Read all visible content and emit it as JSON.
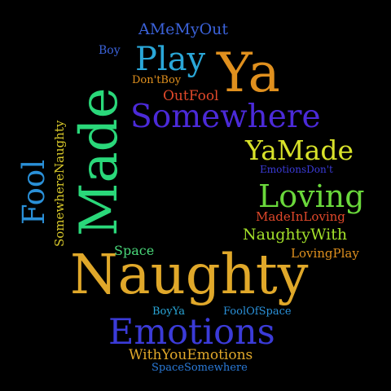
{
  "words": [
    {
      "id": "amemyout",
      "text": "AMeMyOut",
      "color": "#3b62d9"
    },
    {
      "id": "boy",
      "text": "Boy",
      "color": "#3b62d9"
    },
    {
      "id": "play",
      "text": "Play",
      "color": "#2aa7d8"
    },
    {
      "id": "ya",
      "text": "Ya",
      "color": "#e0901e"
    },
    {
      "id": "dontboy",
      "text": "Don'tBoy",
      "color": "#e0901e"
    },
    {
      "id": "outfool",
      "text": "OutFool",
      "color": "#e0482a"
    },
    {
      "id": "somewhere",
      "text": "Somewhere",
      "color": "#4b2ad8"
    },
    {
      "id": "yamade",
      "text": "YaMade",
      "color": "#d8e22a"
    },
    {
      "id": "emotionsdont",
      "text": "EmotionsDon't",
      "color": "#3b3bd8"
    },
    {
      "id": "loving",
      "text": "Loving",
      "color": "#6ad83b"
    },
    {
      "id": "madeinloving",
      "text": "MadeInLoving",
      "color": "#e0482a"
    },
    {
      "id": "naughtywith",
      "text": "NaughtyWith",
      "color": "#a3e02a"
    },
    {
      "id": "lovingplay",
      "text": "LovingPlay",
      "color": "#e0901e"
    },
    {
      "id": "space",
      "text": "Space",
      "color": "#4ad87a"
    },
    {
      "id": "naughty",
      "text": "Naughty",
      "color": "#e0a82a"
    },
    {
      "id": "boyya",
      "text": "BoyYa",
      "color": "#2aa7d8"
    },
    {
      "id": "foolofspace",
      "text": "FoolOfSpace",
      "color": "#2a90d8"
    },
    {
      "id": "emotions",
      "text": "Emotions",
      "color": "#3b3bd8"
    },
    {
      "id": "withyouemotions",
      "text": "WithYouEmotions",
      "color": "#e0a82a"
    },
    {
      "id": "spacesomewhere",
      "text": "SpaceSomewhere",
      "color": "#2a7ad8"
    },
    {
      "id": "fool",
      "text": "Fool",
      "color": "#2a90d8"
    },
    {
      "id": "somewherenaughty",
      "text": "SomewhereNaughty",
      "color": "#d8c82a"
    },
    {
      "id": "made",
      "text": "Made",
      "color": "#2ad87a"
    }
  ]
}
